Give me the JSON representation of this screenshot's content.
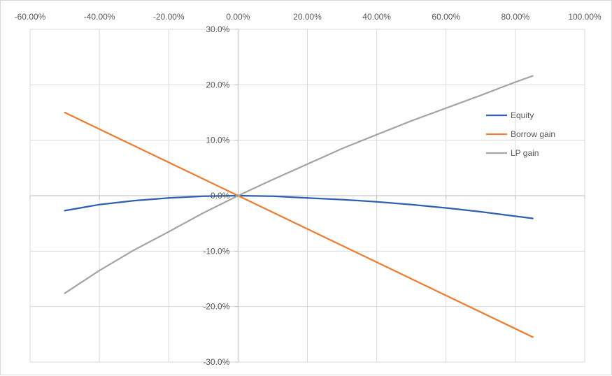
{
  "chart_data": {
    "type": "line",
    "x_ticks": [
      "-60.00%",
      "-40.00%",
      "-20.00%",
      "0.00%",
      "20.00%",
      "40.00%",
      "60.00%",
      "80.00%",
      "100.00%"
    ],
    "y_ticks": [
      "30.0%",
      "20.0%",
      "10.0%",
      "0.0%",
      "-10.0%",
      "-20.0%",
      "-30.0%"
    ],
    "xlim": [
      -0.6,
      1.0
    ],
    "ylim": [
      -0.3,
      0.3
    ],
    "x_axis_position": "top",
    "grid": true,
    "legend_position": "right",
    "series": [
      {
        "name": "Equity",
        "color": "#2e5fb3",
        "x": [
          -0.5,
          -0.4,
          -0.3,
          -0.2,
          -0.1,
          0.0,
          0.1,
          0.2,
          0.3,
          0.4,
          0.5,
          0.6,
          0.7,
          0.8,
          0.85
        ],
        "y": [
          -0.027,
          -0.016,
          -0.009,
          -0.004,
          -0.001,
          0.0,
          -0.001,
          -0.004,
          -0.007,
          -0.011,
          -0.016,
          -0.022,
          -0.029,
          -0.037,
          -0.041
        ]
      },
      {
        "name": "Borrow gain",
        "color": "#ed7d31",
        "x": [
          -0.5,
          0.0,
          0.85
        ],
        "y": [
          0.15,
          0.0,
          -0.255
        ]
      },
      {
        "name": "LP gain",
        "color": "#a5a5a5",
        "x": [
          -0.5,
          -0.4,
          -0.3,
          -0.2,
          -0.1,
          0.0,
          0.1,
          0.2,
          0.3,
          0.4,
          0.5,
          0.6,
          0.7,
          0.8,
          0.85
        ],
        "y": [
          -0.176,
          -0.135,
          -0.098,
          -0.065,
          -0.031,
          0.0,
          0.029,
          0.057,
          0.085,
          0.11,
          0.135,
          0.158,
          0.181,
          0.205,
          0.216
        ]
      }
    ]
  }
}
